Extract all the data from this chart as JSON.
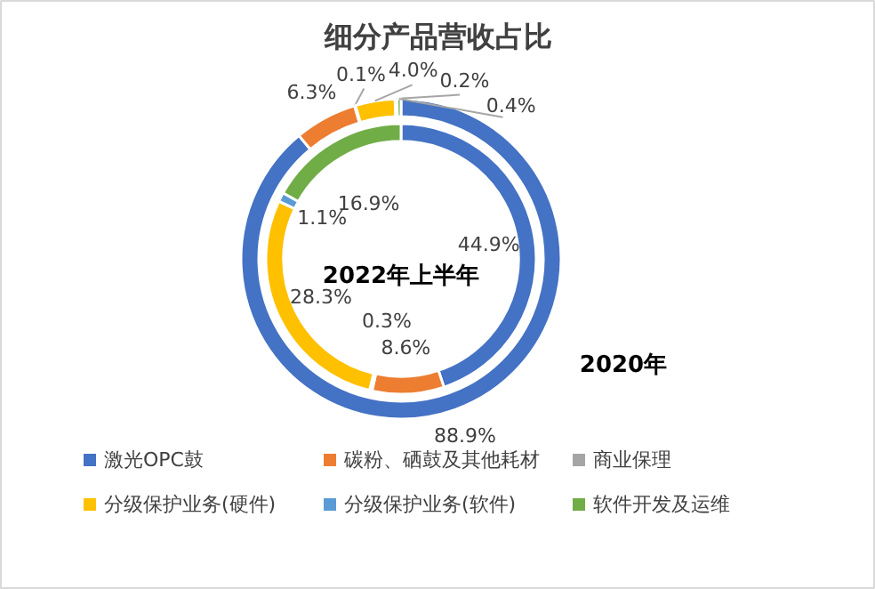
{
  "chart_data": {
    "type": "donut",
    "title": "细分产品营收占比",
    "categories": [
      "激光OPC鼓",
      "碳粉、硒鼓及其他耗材",
      "商业保理",
      "分级保护业务(硬件)",
      "分级保护业务(软件)",
      "软件开发及运维"
    ],
    "colors": [
      "#4472c4",
      "#ed7d31",
      "#a5a5a5",
      "#ffc000",
      "#5b9bd5",
      "#70ad47"
    ],
    "series": [
      {
        "name": "2022年上半年",
        "values": [
          44.9,
          8.6,
          0.3,
          28.3,
          1.1,
          16.9
        ],
        "value_labels": [
          "44.9%",
          "8.6%",
          "0.3%",
          "28.3%",
          "1.1%",
          "16.9%"
        ]
      },
      {
        "name": "2020年",
        "values": [
          88.9,
          6.3,
          0.1,
          4.0,
          0.2,
          0.4
        ],
        "value_labels": [
          "88.9%",
          "6.3%",
          "0.1%",
          "4.0%",
          "0.2%",
          "0.4%"
        ]
      }
    ],
    "data_labels": true,
    "legend": "bottom"
  }
}
